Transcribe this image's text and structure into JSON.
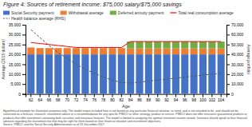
{
  "chart_data": {
    "type": "bar",
    "stacked": true,
    "title": "Figure 4: Sources of retirement income: $75,000 salary/$75,000 savings",
    "x_label": "Age",
    "y_label": "Average (2015 dollars)",
    "y2_label": "Average portfolio",
    "categories": [
      62,
      64,
      66,
      68,
      70,
      72,
      74,
      76,
      78,
      80,
      82,
      84,
      86,
      88,
      90,
      92,
      94,
      96,
      98,
      100,
      102,
      104
    ],
    "series": [
      {
        "name": "Social Security payment",
        "type": "bar",
        "color": "#4472C4",
        "values": [
          20000,
          20000,
          20000,
          20000,
          20000,
          20000,
          20000,
          20000,
          20000,
          20000,
          20000,
          20000,
          20000,
          20000,
          20000,
          20000,
          20000,
          20000,
          20000,
          20000,
          20000,
          20000
        ]
      },
      {
        "name": "Withdrawal average",
        "type": "bar",
        "color": "#ED7D31",
        "values": [
          3500,
          3200,
          3200,
          3200,
          3200,
          3200,
          3200,
          3200,
          3200,
          3200,
          3200,
          3000,
          3000,
          3000,
          3000,
          3000,
          3000,
          3000,
          3000,
          3000,
          3000,
          3000
        ]
      },
      {
        "name": "Deferred annuity payment",
        "type": "bar",
        "color": "#70AD47",
        "values": [
          0,
          0,
          0,
          0,
          0,
          0,
          0,
          0,
          0,
          0,
          0,
          3500,
          3500,
          3500,
          3500,
          3500,
          3500,
          3500,
          3500,
          3500,
          3500,
          3500
        ]
      },
      {
        "name": "Total real consumption average",
        "type": "line",
        "color": "#FF0000",
        "line_style": "solid",
        "values": [
          26000,
          25500,
          25000,
          24500,
          24000,
          23500,
          23500,
          23500,
          23500,
          23500,
          23500,
          26500,
          26500,
          26500,
          26500,
          26500,
          26500,
          26500,
          26500,
          26500,
          26500,
          26500
        ]
      },
      {
        "name": "Health balance average (RHS)",
        "type": "line",
        "axis": "y2",
        "color": "#595959",
        "line_style": "dashed",
        "values": [
          65000,
          57000,
          49000,
          42000,
          36000,
          30000,
          25000,
          21000,
          17000,
          14000,
          11500,
          11000,
          12000,
          13000,
          14000,
          15000,
          16000,
          17000,
          18000,
          19000,
          20000,
          21000
        ]
      }
    ],
    "ylim": [
      0,
      35000
    ],
    "yticks": [
      0,
      {
        "value": 5000,
        "label": "5,000"
      },
      {
        "value": 10000,
        "label": "10,000"
      },
      {
        "value": 15000,
        "label": "15,000"
      },
      {
        "value": 20000,
        "label": "20,000"
      },
      {
        "value": 25000,
        "label": "25,000"
      },
      {
        "value": 30000,
        "label": "30,000"
      },
      {
        "value": 35000,
        "label": "35,000"
      }
    ],
    "y2lim": [
      0,
      70000
    ],
    "y2ticks": [
      0,
      {
        "value": 10000,
        "label": "10,000"
      },
      {
        "value": 20000,
        "label": "20,000"
      },
      {
        "value": 30000,
        "label": "30,000"
      },
      {
        "value": 40000,
        "label": "40,000"
      },
      {
        "value": 50000,
        "label": "50,000"
      },
      {
        "value": 60000,
        "label": "60,000"
      },
      {
        "value": 70000,
        "label": "70,000"
      }
    ],
    "grid": false,
    "legend": "top",
    "footnote": "Hypothetical example for illustrative purposes only. The model output included here is not based on any particular financial situation, or need, and is not intended to be, and should not be construed as a forecast, research, investment advice or a recommendation for any specific PIMCO or other strategy, product or service. PIMCO does not offer insurance guaranteed products or products that offer investment-containing both securities and insurance features. The model is limited to analyzing the optimal retirement income stream. Investors should speak to their financial advisors regarding the investment mix that may be right for them based on their financial situation and investment objectives.",
    "source": "Source: PIMCO and the Social Security Administration as of 31 December 2017"
  }
}
